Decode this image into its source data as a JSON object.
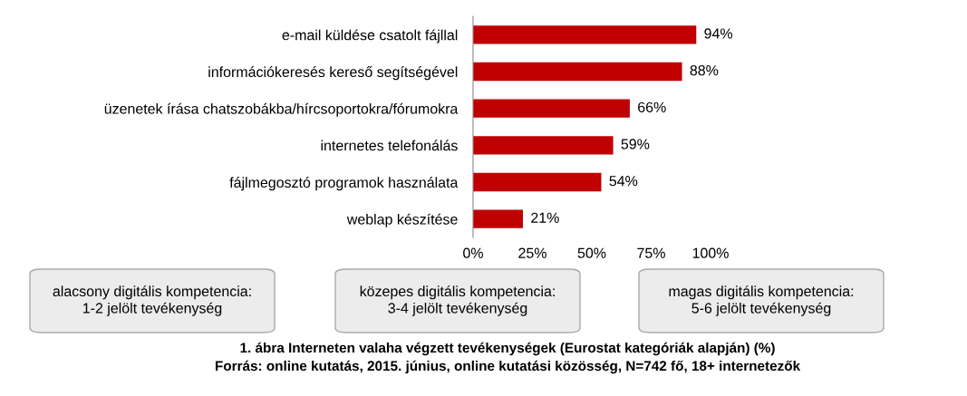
{
  "chart_data": {
    "type": "bar",
    "orientation": "horizontal",
    "categories": [
      "e-mail küldése csatolt fájllal",
      "információkeresés kereső segítségével",
      "üzenetek írása chatszobákba/hírcsoportokra/fórumokra",
      "internetes telefonálás",
      "fájlmegosztó programok használata",
      "weblap készítése"
    ],
    "values": [
      94,
      88,
      66,
      59,
      54,
      21
    ],
    "value_labels": [
      "94%",
      "88%",
      "66%",
      "59%",
      "54%",
      "21%"
    ],
    "color": "#c00000",
    "xlim": [
      0,
      100
    ],
    "xticks": [
      {
        "value": 0,
        "label": "0%"
      },
      {
        "value": 25,
        "label": "25%"
      },
      {
        "value": 50,
        "label": "50%"
      },
      {
        "value": 75,
        "label": "75%"
      },
      {
        "value": 100,
        "label": "100%"
      }
    ],
    "grid": false,
    "legend": false,
    "annotations": [
      "alacsony digitális kompetencia:\n1-2 jelölt tevékenység",
      "közepes digitális kompetencia:\n3-4 jelölt tevékenység",
      "magas digitális kompetencia:\n5-6 jelölt tevékenység",
      "1. ábra Interneten valaha végzett tevékenységek (Eurostat kategóriák alapján) (%)",
      "Forrás: online kutatás, 2015. június, online kutatási közösség, N=742 fő, 18+ internetezők"
    ]
  }
}
